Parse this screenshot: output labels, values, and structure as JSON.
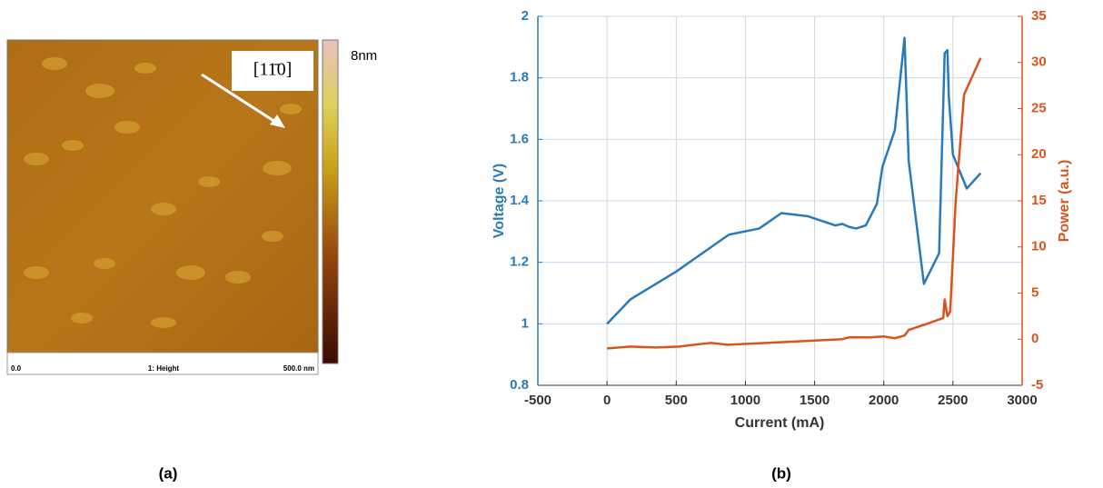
{
  "image_panel": {
    "direction_label": "[11̄0]",
    "scale_max": "8nm",
    "footer_left": "0.0",
    "footer_center": "1: Height",
    "footer_right": "500.0 nm"
  },
  "captions": [
    "(a)",
    "(b)"
  ],
  "chart_data": {
    "type": "line",
    "x_label": "Current (mA)",
    "y_label": "Voltage (V)",
    "y2_label": "Power (a.u.)",
    "xlim": [
      -500,
      3000
    ],
    "xticks": [
      -500,
      0,
      500,
      1000,
      1500,
      2000,
      2500,
      3000
    ],
    "ylim": [
      0.8,
      2
    ],
    "yticks": [
      0.8,
      1,
      1.2,
      1.4,
      1.6,
      1.8,
      2
    ],
    "y2lim": [
      -5,
      35
    ],
    "y2ticks": [
      -5,
      0,
      5,
      10,
      15,
      20,
      25,
      30,
      35
    ],
    "grid": true,
    "series": [
      {
        "name": "Voltage (V)",
        "color": "#2a7ab9",
        "axis": "y",
        "x": [
          0,
          170,
          500,
          880,
          1100,
          1260,
          1450,
          1650,
          1700,
          1750,
          1800,
          1870,
          1950,
          1990,
          2080,
          2150,
          2180,
          2290,
          2400,
          2440,
          2460,
          2470,
          2500,
          2600,
          2700
        ],
        "values": [
          1.0,
          1.08,
          1.17,
          1.29,
          1.31,
          1.36,
          1.35,
          1.32,
          1.325,
          1.315,
          1.31,
          1.32,
          1.39,
          1.51,
          1.63,
          1.93,
          1.53,
          1.13,
          1.23,
          1.88,
          1.89,
          1.74,
          1.55,
          1.44,
          1.49
        ]
      },
      {
        "name": "Power (a.u.)",
        "color": "#d9531e",
        "axis": "y2",
        "x": [
          0,
          170,
          350,
          520,
          750,
          870,
          1300,
          1700,
          1750,
          1900,
          2000,
          2080,
          2150,
          2180,
          2300,
          2430,
          2440,
          2460,
          2480,
          2520,
          2580,
          2700
        ],
        "values": [
          -1,
          -0.8,
          -0.9,
          -0.8,
          -0.4,
          -0.6,
          -0.3,
          0,
          0.2,
          0.2,
          0.3,
          0.1,
          0.4,
          1,
          1.6,
          2.3,
          4.3,
          2.5,
          3,
          15,
          26.5,
          30.5
        ]
      }
    ]
  }
}
